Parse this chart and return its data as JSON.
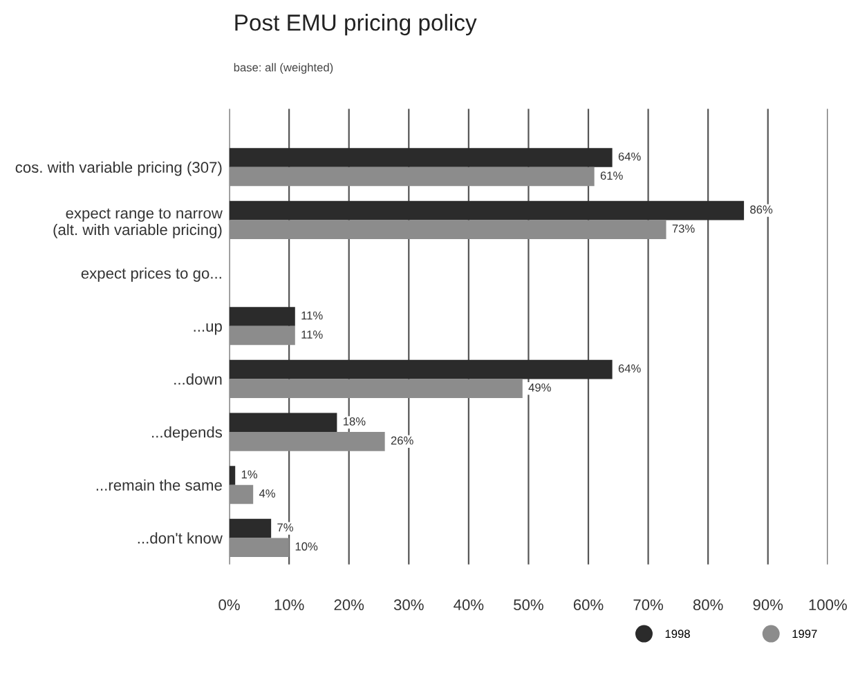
{
  "chart_data": {
    "type": "bar",
    "orientation": "horizontal",
    "title": "Post EMU pricing policy",
    "subtitle": "base: all (weighted)",
    "categories": [
      "cos. with variable pricing (307)",
      "expect range to narrow\n(alt. with variable pricing)",
      "expect prices to go...",
      "...up",
      "...down",
      "...depends",
      "...remain the same",
      "...don't know"
    ],
    "series": [
      {
        "name": "1998",
        "color": "#2b2b2b",
        "values": [
          64,
          86,
          null,
          11,
          64,
          18,
          1,
          7
        ],
        "value_labels": [
          "64%",
          "86%",
          null,
          "11%",
          "64%",
          "18%",
          "1%",
          "7%"
        ]
      },
      {
        "name": "1997",
        "color": "#8c8c8c",
        "values": [
          61,
          73,
          null,
          11,
          49,
          26,
          4,
          10
        ],
        "value_labels": [
          "61%",
          "73%",
          null,
          "11%",
          "49%",
          "26%",
          "4%",
          "10%"
        ]
      }
    ],
    "xlim": [
      0,
      100
    ],
    "xticks": [
      {
        "value": 0,
        "label": "0%"
      },
      {
        "value": 10,
        "label": "10%"
      },
      {
        "value": 20,
        "label": "20%"
      },
      {
        "value": 30,
        "label": "30%"
      },
      {
        "value": 40,
        "label": "40%"
      },
      {
        "value": 50,
        "label": "50%"
      },
      {
        "value": 60,
        "label": "60%"
      },
      {
        "value": 70,
        "label": "70%"
      },
      {
        "value": 80,
        "label": "80%"
      },
      {
        "value": 90,
        "label": "90%"
      },
      {
        "value": 100,
        "label": "100%"
      }
    ],
    "grid": "x",
    "legend": "bottom right"
  }
}
